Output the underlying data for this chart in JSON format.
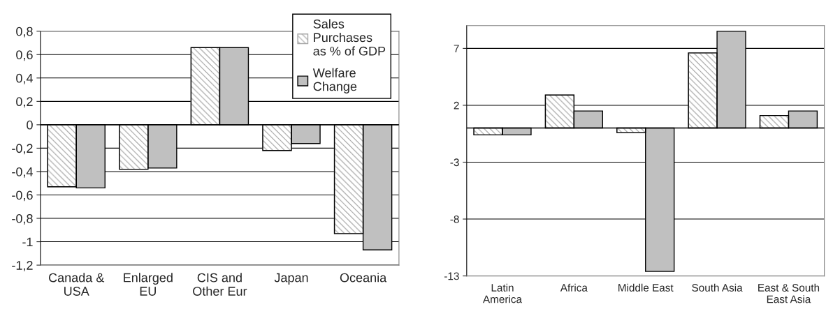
{
  "chart_data": [
    {
      "type": "bar",
      "categories": [
        "Canada &\nUSA",
        "Enlarged\nEU",
        "CIS and\nOther Eur",
        "Japan",
        "Oceania"
      ],
      "series": [
        {
          "name": "Sales\nPurchases\nas % of GDP",
          "color": "#a6a6a6",
          "values": [
            -0.53,
            -0.38,
            0.66,
            -0.22,
            -0.93
          ]
        },
        {
          "name": "Welfare\nChange",
          "color": "#c0c0c0",
          "values": [
            -0.54,
            -0.37,
            0.66,
            -0.16,
            -1.07
          ]
        }
      ],
      "ylim": [
        -1.2,
        0.8
      ],
      "yticks": [
        {
          "value": -1.2,
          "label": "-1,2"
        },
        {
          "value": -1,
          "label": "-1"
        },
        {
          "value": -0.8,
          "label": "-0,8"
        },
        {
          "value": -0.6,
          "label": "-0,6"
        },
        {
          "value": -0.4,
          "label": "-0,4"
        },
        {
          "value": -0.2,
          "label": "-0,2"
        },
        0,
        {
          "value": 0.2,
          "label": "0,2"
        },
        {
          "value": 0.4,
          "label": "0,4"
        },
        {
          "value": 0.6,
          "label": "0,6"
        },
        {
          "value": 0.8,
          "label": "0,8"
        }
      ],
      "grid": "y",
      "legend": "top right"
    },
    {
      "type": "bar",
      "categories": [
        "Latin\nAmerica",
        "Africa",
        "Middle East",
        "South Asia",
        "East & South\nEast Asia"
      ],
      "series": [
        {
          "color": "#a6a6a6",
          "values": [
            -0.6,
            2.9,
            -0.4,
            6.6,
            1.1
          ]
        },
        {
          "color": "#c0c0c0",
          "values": [
            -0.6,
            1.5,
            -12.6,
            8.5,
            1.5
          ]
        }
      ],
      "ylim": [
        -13,
        9
      ],
      "yticks": [
        -13,
        -8,
        -3,
        2,
        7
      ],
      "grid": "y"
    }
  ]
}
